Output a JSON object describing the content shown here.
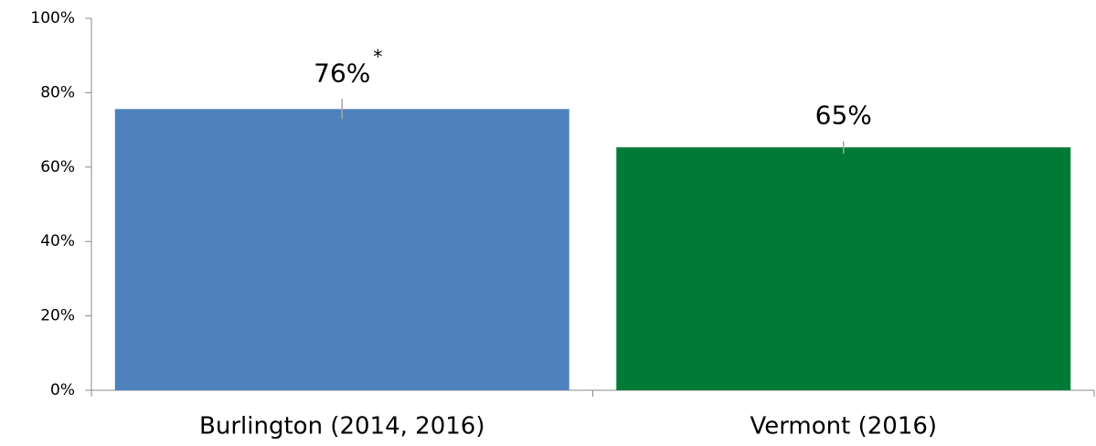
{
  "chart_data": {
    "type": "bar",
    "categories": [
      "Burlington (2014, 2016)",
      "Vermont (2016)"
    ],
    "values": [
      75.6,
      65.3
    ],
    "value_labels": [
      "76%",
      "65%"
    ],
    "errors": [
      2.7,
      1.7
    ],
    "colors": [
      "#4f81bd",
      "#007a37"
    ],
    "annotation": "*",
    "ylim": [
      0,
      100
    ],
    "yticks": [
      {
        "value": 0,
        "label": "0%"
      },
      {
        "value": 20,
        "label": "20%"
      },
      {
        "value": 40,
        "label": "40%"
      },
      {
        "value": 60,
        "label": "60%"
      },
      {
        "value": 80,
        "label": "80%"
      },
      {
        "value": 100,
        "label": "100%"
      }
    ]
  }
}
